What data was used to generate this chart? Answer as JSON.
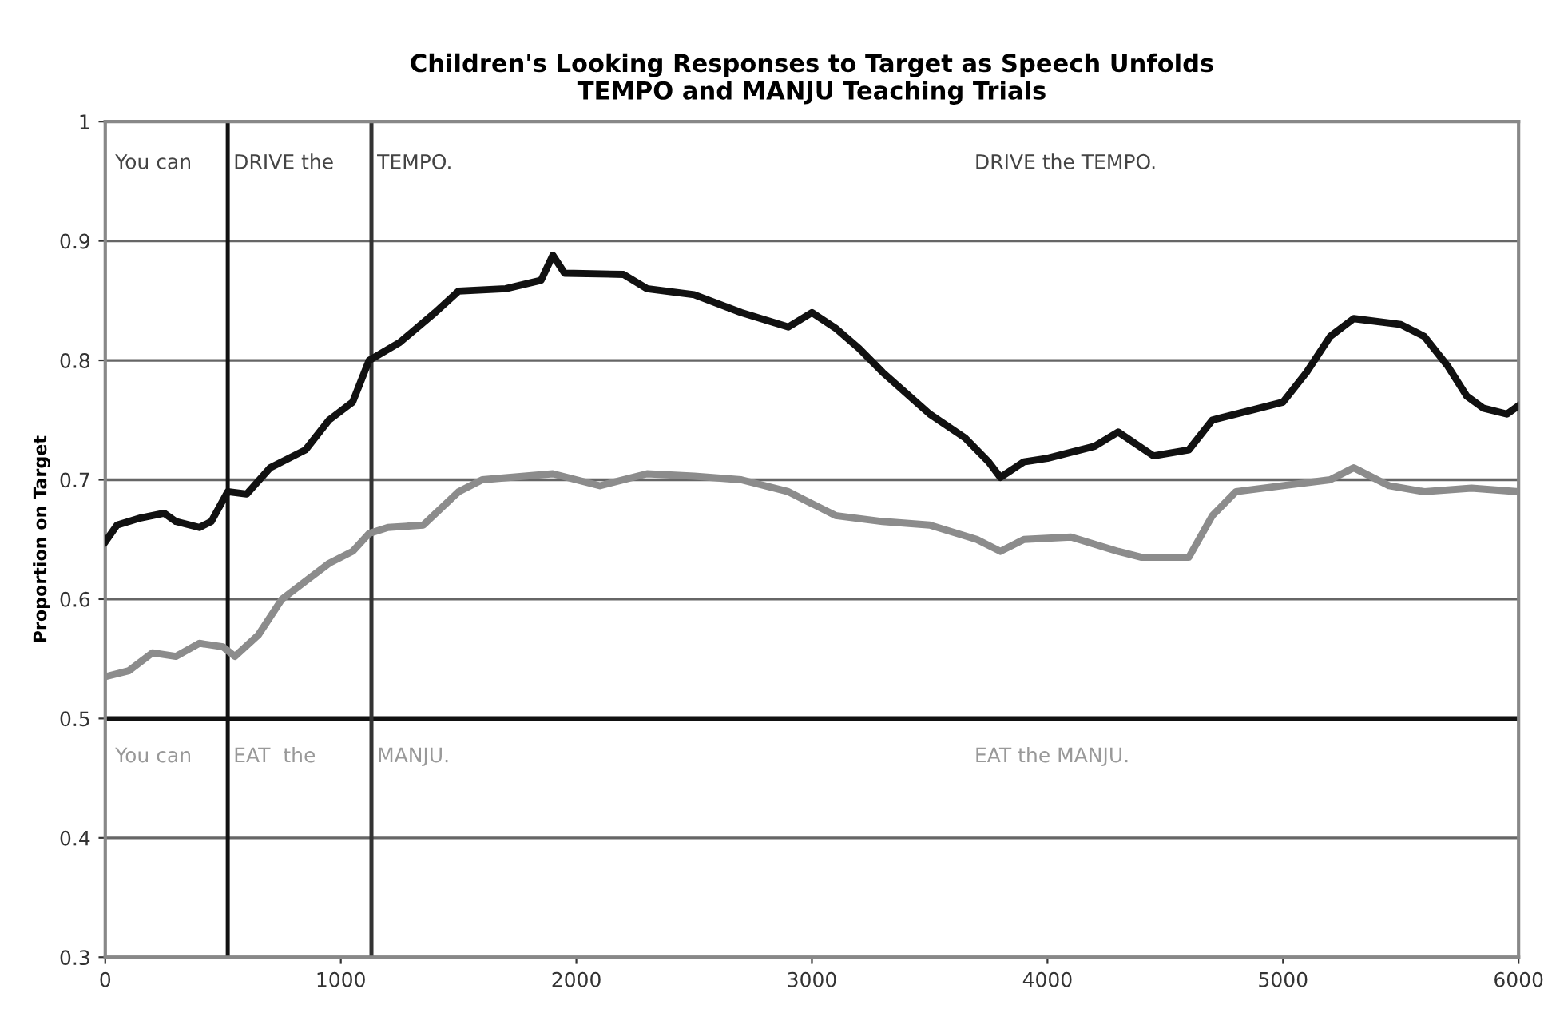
{
  "chart_data": {
    "type": "line",
    "title": "Children's Looking Responses to Target as Speech Unfolds\nTEMPO and MANJU Teaching Trials",
    "ylabel": "Proportion on Target",
    "xlim": [
      0,
      6000
    ],
    "xticks": [
      0,
      1000,
      2000,
      3000,
      4000,
      5000,
      6000
    ],
    "ylim": [
      0.3,
      1
    ],
    "yticks": [
      0.3,
      0.4,
      0.5,
      0.6,
      0.7,
      0.8,
      0.9,
      1
    ],
    "grid": "y",
    "legend": false,
    "line_style": "solid",
    "series": [
      {
        "color": "#111111",
        "x": [
          0,
          50,
          150,
          250,
          300,
          400,
          450,
          520,
          600,
          700,
          850,
          950,
          1050,
          1120,
          1250,
          1400,
          1500,
          1700,
          1850,
          1900,
          1950,
          2200,
          2300,
          2500,
          2700,
          2900,
          3000,
          3100,
          3200,
          3300,
          3500,
          3650,
          3750,
          3800,
          3900,
          4000,
          4200,
          4300,
          4450,
          4600,
          4700,
          4900,
          5000,
          5100,
          5200,
          5300,
          5500,
          5600,
          5700,
          5780,
          5850,
          5950,
          6000
        ],
        "values": [
          0.648,
          0.662,
          0.668,
          0.672,
          0.665,
          0.66,
          0.665,
          0.69,
          0.688,
          0.71,
          0.725,
          0.75,
          0.765,
          0.8,
          0.815,
          0.84,
          0.858,
          0.86,
          0.867,
          0.888,
          0.873,
          0.872,
          0.86,
          0.855,
          0.84,
          0.828,
          0.84,
          0.827,
          0.81,
          0.79,
          0.755,
          0.735,
          0.715,
          0.702,
          0.715,
          0.718,
          0.728,
          0.74,
          0.72,
          0.725,
          0.75,
          0.76,
          0.765,
          0.79,
          0.82,
          0.835,
          0.83,
          0.82,
          0.795,
          0.77,
          0.76,
          0.755,
          0.762
        ]
      },
      {
        "color": "#8c8c8c",
        "x": [
          0,
          100,
          200,
          300,
          400,
          500,
          550,
          650,
          750,
          850,
          950,
          1050,
          1120,
          1200,
          1350,
          1500,
          1600,
          1900,
          2100,
          2300,
          2500,
          2700,
          2900,
          3100,
          3300,
          3500,
          3700,
          3800,
          3900,
          4100,
          4300,
          4400,
          4600,
          4700,
          4800,
          5000,
          5200,
          5300,
          5450,
          5600,
          5800,
          6000
        ],
        "values": [
          0.535,
          0.54,
          0.555,
          0.552,
          0.563,
          0.56,
          0.552,
          0.57,
          0.6,
          0.615,
          0.63,
          0.64,
          0.655,
          0.66,
          0.662,
          0.69,
          0.7,
          0.705,
          0.695,
          0.705,
          0.703,
          0.7,
          0.69,
          0.67,
          0.665,
          0.662,
          0.65,
          0.64,
          0.65,
          0.652,
          0.64,
          0.635,
          0.635,
          0.67,
          0.69,
          0.695,
          0.7,
          0.71,
          0.695,
          0.69,
          0.693,
          0.69
        ]
      }
    ],
    "ref_lines": [
      {
        "axis": "y",
        "value": 0.5,
        "color": "#111111"
      },
      {
        "axis": "x",
        "value": 520,
        "color": "#111111"
      },
      {
        "axis": "x",
        "value": 1130,
        "color": "#333333"
      }
    ],
    "annotations": [
      "You can",
      "DRIVE the",
      "TEMPO.",
      "DRIVE the TEMPO.",
      "You can",
      "EAT  the",
      "MANJU.",
      "EAT the MANJU."
    ]
  }
}
